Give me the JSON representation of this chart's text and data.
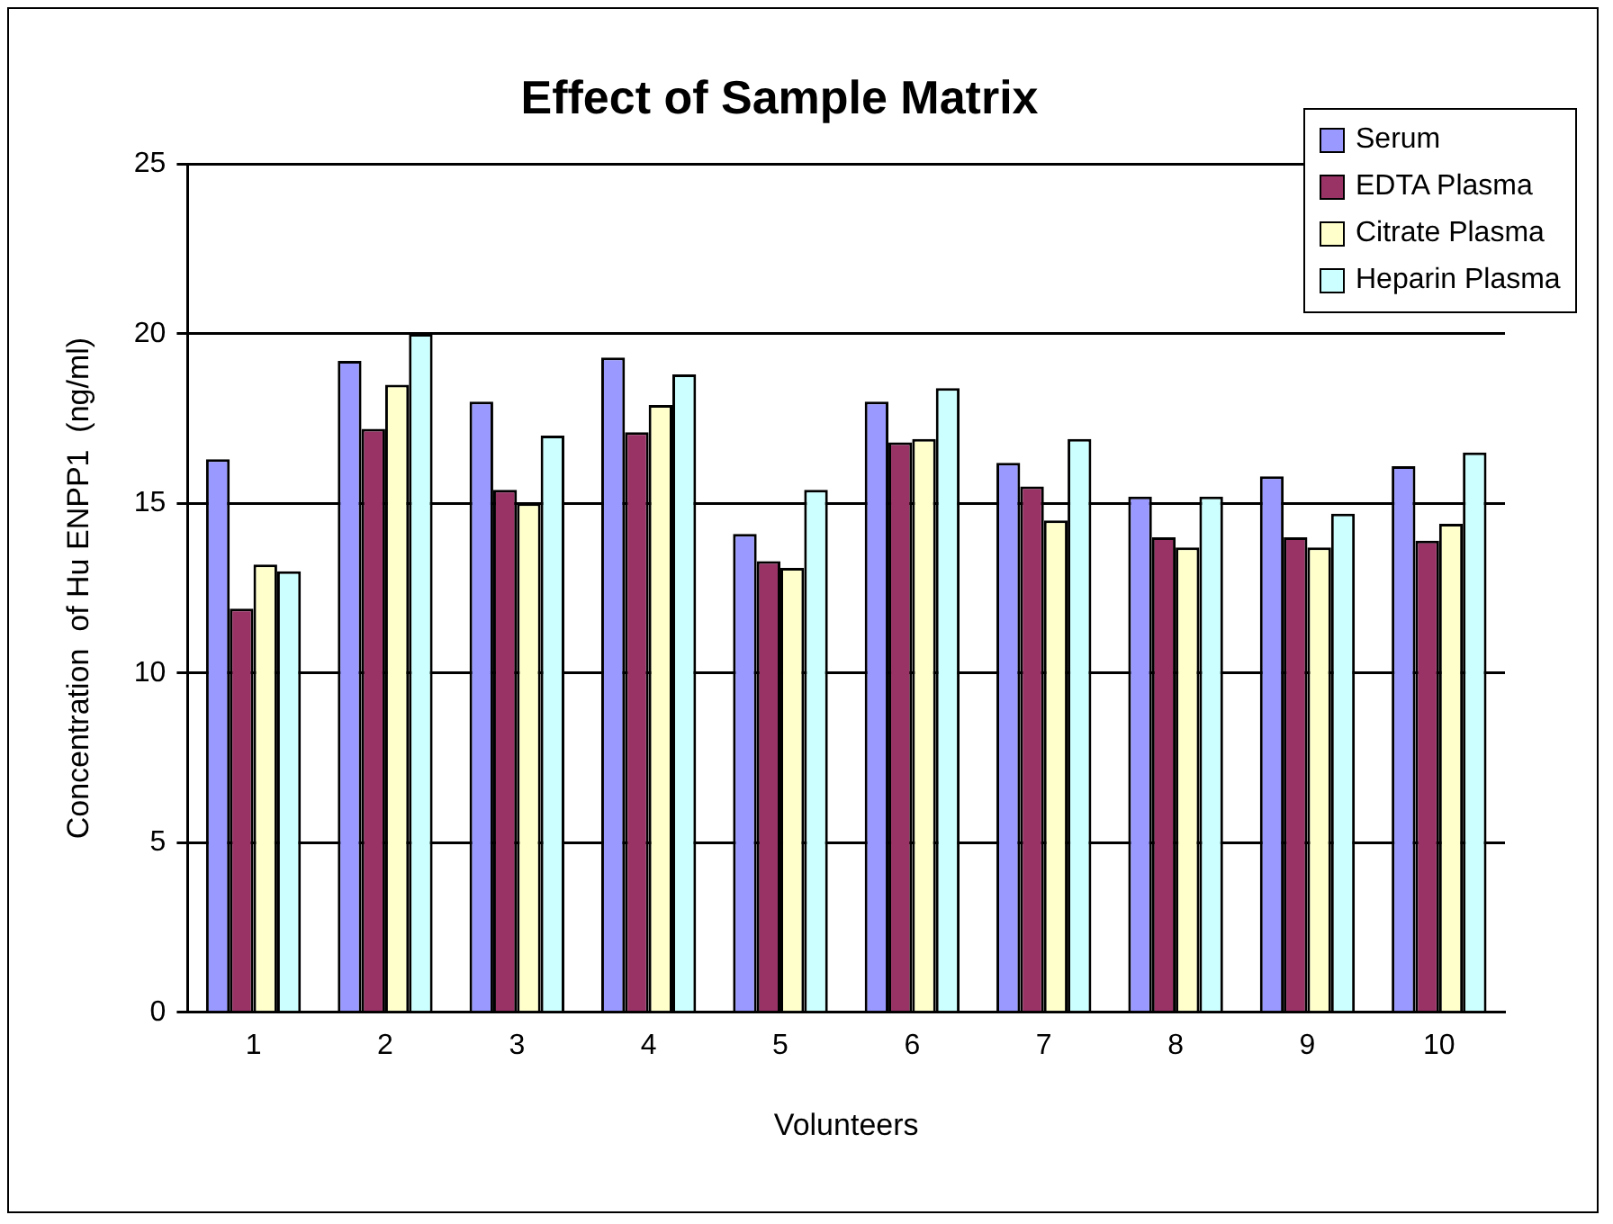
{
  "chart_data": {
    "type": "bar",
    "title": "Effect of Sample Matrix",
    "xlabel": "Volunteers",
    "ylabel": "Concentration  of Hu ENPP1  (ng/ml)",
    "categories": [
      "1",
      "2",
      "3",
      "4",
      "5",
      "6",
      "7",
      "8",
      "9",
      "10"
    ],
    "series": [
      {
        "name": "Serum",
        "color": "#9999ff",
        "values": [
          16.3,
          19.2,
          18.0,
          19.3,
          14.1,
          18.0,
          16.2,
          15.2,
          15.8,
          16.1
        ]
      },
      {
        "name": "EDTA Plasma",
        "color": "#993366",
        "values": [
          11.9,
          17.2,
          15.4,
          17.1,
          13.3,
          16.8,
          15.5,
          14.0,
          14.0,
          13.9
        ]
      },
      {
        "name": "Citrate Plasma",
        "color": "#ffffcc",
        "values": [
          13.2,
          18.5,
          15.0,
          17.9,
          13.1,
          16.9,
          14.5,
          13.7,
          13.7,
          14.4
        ]
      },
      {
        "name": "Heparin Plasma",
        "color": "#ccffff",
        "values": [
          13.0,
          20.0,
          17.0,
          18.8,
          15.4,
          18.4,
          16.9,
          15.2,
          14.7,
          16.5
        ]
      }
    ],
    "ylim": [
      0,
      25
    ],
    "yticks": [
      0,
      5,
      10,
      15,
      20,
      25
    ],
    "grid": "y",
    "legend": "top right"
  }
}
